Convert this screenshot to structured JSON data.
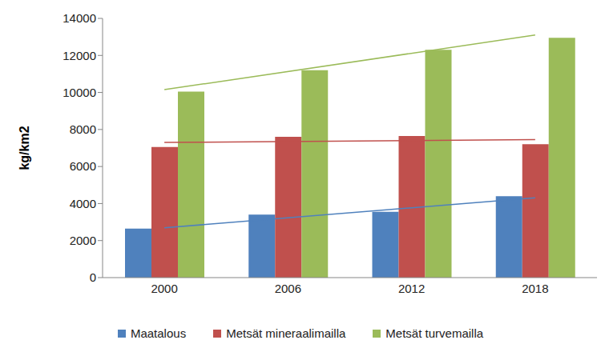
{
  "chart_data": {
    "type": "bar",
    "y_label": "kg/km2",
    "categories": [
      "2000",
      "2006",
      "2012",
      "2018"
    ],
    "series": [
      {
        "name": "Maatalous",
        "color": "#4f81bd",
        "values": [
          2650,
          3400,
          3550,
          4400
        ],
        "trend": [
          2690,
          4310
        ]
      },
      {
        "name": "Metsät mineraalimailla",
        "color": "#c0504d",
        "values": [
          7050,
          7600,
          7650,
          7200
        ],
        "trend": [
          7300,
          7450
        ]
      },
      {
        "name": "Metsät turvemailla",
        "color": "#9bbb59",
        "values": [
          10050,
          11200,
          12300,
          12950
        ],
        "trend": [
          10150,
          13100
        ]
      }
    ],
    "ylim": [
      0,
      14000
    ],
    "yticks": [
      0,
      2000,
      4000,
      6000,
      8000,
      10000,
      12000,
      14000
    ],
    "grid": false,
    "legend": "bottom"
  }
}
